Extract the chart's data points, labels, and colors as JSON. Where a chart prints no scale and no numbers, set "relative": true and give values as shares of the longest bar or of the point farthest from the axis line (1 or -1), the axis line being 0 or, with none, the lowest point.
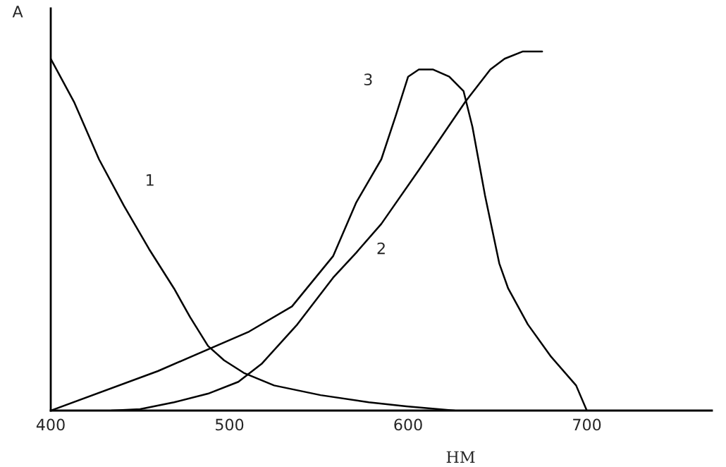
{
  "chart_data": {
    "type": "line",
    "relative": true,
    "xlabel": "НМ",
    "ylabel": "А",
    "xlim": [
      400,
      770
    ],
    "xticks": [
      400,
      500,
      600,
      700
    ],
    "grid": false,
    "legend": false,
    "marker": "none",
    "line_style": "solid",
    "series": [
      {
        "color": "#000000",
        "x": [
          400,
          413,
          427,
          441,
          455,
          469,
          478,
          488,
          497,
          508,
          525,
          551,
          578,
          599,
          626
        ],
        "values": [
          0.98,
          0.86,
          0.7,
          0.57,
          0.45,
          0.34,
          0.26,
          0.18,
          0.14,
          0.105,
          0.07,
          0.043,
          0.023,
          0.012,
          0
        ]
      },
      {
        "color": "#000000",
        "x": [
          434,
          450,
          469,
          488,
          505,
          518,
          538,
          558,
          571,
          585,
          606,
          632,
          646,
          654,
          664,
          675
        ],
        "values": [
          0,
          0.004,
          0.023,
          0.047,
          0.08,
          0.13,
          0.24,
          0.37,
          0.44,
          0.52,
          0.67,
          0.86,
          0.95,
          0.98,
          1.0,
          1.0
        ]
      },
      {
        "color": "#000000",
        "x": [
          400,
          460,
          511,
          535,
          558,
          571,
          585,
          593,
          600,
          606,
          614,
          623,
          631,
          636,
          643,
          651,
          656,
          667,
          680,
          694,
          700
        ],
        "values": [
          0,
          0.11,
          0.22,
          0.29,
          0.43,
          0.58,
          0.7,
          0.82,
          0.93,
          0.95,
          0.95,
          0.93,
          0.89,
          0.79,
          0.6,
          0.41,
          0.34,
          0.24,
          0.15,
          0.07,
          0
        ]
      }
    ],
    "annotations": [
      "1",
      "2",
      "3"
    ]
  }
}
